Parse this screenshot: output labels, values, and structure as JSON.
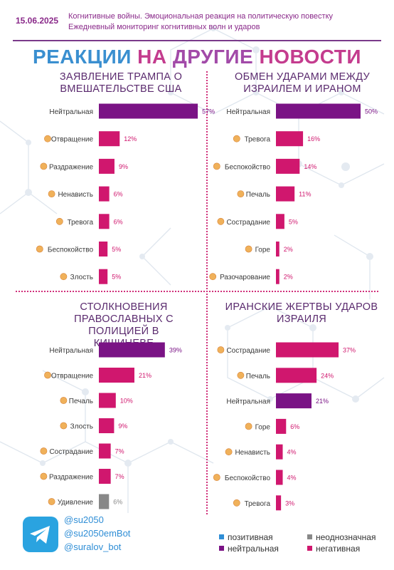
{
  "header": {
    "date": "15.06.2025",
    "line1": "Когнитивные войны. Эмоциональная реакция на политическую повестку",
    "line2": "Ежедневный мониторинг когнитивных волн и ударов"
  },
  "title": {
    "word1": "РЕАКЦИИ",
    "word2": "НА",
    "word3": "ДРУГИЕ",
    "word4": "НОВОСТИ"
  },
  "colors": {
    "positive": "#2f8ed6",
    "neutral": "#7a1385",
    "ambiguous": "#888888",
    "negative": "#d0176e"
  },
  "footer": {
    "handles": [
      "@su2050",
      "@su2050emBot",
      "@suralov_bot"
    ],
    "icon": "telegram-icon"
  },
  "legend": [
    {
      "label": "позитивная",
      "kind": "positive"
    },
    {
      "label": "неоднозначная",
      "kind": "ambiguous"
    },
    {
      "label": "нейтральная",
      "kind": "neutral"
    },
    {
      "label": "негативная",
      "kind": "negative"
    }
  ],
  "chart_data": [
    {
      "type": "bar",
      "orientation": "horizontal",
      "title": "ЗАЯВЛЕНИЕ ТРАМПА О ВМЕШАТЕЛЬСТВЕ США",
      "categories": [
        "Нейтральная",
        "Отвращение",
        "Раздражение",
        "Ненависть",
        "Тревога",
        "Беспокойство",
        "Злость"
      ],
      "values": [
        57,
        12,
        9,
        6,
        6,
        5,
        5
      ],
      "labels": [
        "57%",
        "12%",
        "9%",
        "6%",
        "6%",
        "5%",
        "5%"
      ],
      "kinds": [
        "neutral",
        "negative",
        "negative",
        "negative",
        "negative",
        "negative",
        "negative"
      ]
    },
    {
      "type": "bar",
      "orientation": "horizontal",
      "title": "ОБМЕН УДАРАМИ МЕЖДУ ИЗРАИЛЕМ И ИРАНОМ",
      "categories": [
        "Нейтральная",
        "Тревога",
        "Беспокойство",
        "Печаль",
        "Сострадание",
        "Горе",
        "Разочарование"
      ],
      "values": [
        50,
        16,
        14,
        11,
        5,
        2,
        2
      ],
      "labels": [
        "50%",
        "16%",
        "14%",
        "11%",
        "5%",
        "2%",
        "2%"
      ],
      "kinds": [
        "neutral",
        "negative",
        "negative",
        "negative",
        "negative",
        "negative",
        "negative"
      ]
    },
    {
      "type": "bar",
      "orientation": "horizontal",
      "title": "СТОЛКНОВЕНИЯ ПРАВОСЛАВНЫХ С ПОЛИЦИЕЙ В КИШИНЕВЕ",
      "categories": [
        "Нейтральная",
        "Отвращение",
        "Печаль",
        "Злость",
        "Сострадание",
        "Раздражение",
        "Удивление"
      ],
      "values": [
        39,
        21,
        10,
        9,
        7,
        7,
        6
      ],
      "labels": [
        "39%",
        "21%",
        "10%",
        "9%",
        "7%",
        "7%",
        "6%"
      ],
      "kinds": [
        "neutral",
        "negative",
        "negative",
        "negative",
        "negative",
        "negative",
        "ambiguous"
      ]
    },
    {
      "type": "bar",
      "orientation": "horizontal",
      "title": "ИРАНСКИЕ ЖЕРТВЫ УДАРОВ ИЗРАИЛЯ",
      "categories": [
        "Сострадание",
        "Печаль",
        "Нейтральная",
        "Горе",
        "Ненависть",
        "Беспокойство",
        "Тревога"
      ],
      "values": [
        37,
        24,
        21,
        6,
        4,
        4,
        3
      ],
      "labels": [
        "37%",
        "24%",
        "21%",
        "6%",
        "4%",
        "4%",
        "3%"
      ],
      "kinds": [
        "negative",
        "negative",
        "neutral",
        "negative",
        "negative",
        "negative",
        "negative"
      ]
    }
  ]
}
